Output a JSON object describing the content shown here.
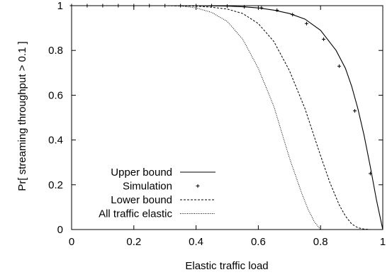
{
  "chart_data": {
    "type": "line",
    "title": "",
    "xlabel": "Elastic traffic load",
    "ylabel": "Pr[ streaming throughput > 0.1 ]",
    "xlim": [
      0,
      1
    ],
    "ylim": [
      0,
      1
    ],
    "xticks": [
      "0",
      "0.2",
      "0.4",
      "0.6",
      "0.8",
      "1"
    ],
    "yticks": [
      "0",
      "0.2",
      "0.4",
      "0.6",
      "0.8",
      "1"
    ],
    "grid": false,
    "legend_position": "bottom-left",
    "series": [
      {
        "name": "Upper bound",
        "style": "solid",
        "x": [
          0,
          0.1,
          0.2,
          0.3,
          0.4,
          0.45,
          0.5,
          0.55,
          0.6,
          0.65,
          0.7,
          0.75,
          0.8,
          0.85,
          0.88,
          0.9,
          0.92,
          0.94,
          0.96,
          0.98,
          1.0
        ],
        "y": [
          1,
          1,
          1,
          1,
          1,
          0.999,
          0.998,
          0.995,
          0.99,
          0.98,
          0.965,
          0.94,
          0.89,
          0.8,
          0.72,
          0.64,
          0.54,
          0.42,
          0.28,
          0.13,
          0
        ]
      },
      {
        "name": "Simulation",
        "style": "points",
        "x": [
          0.0,
          0.05,
          0.1,
          0.15,
          0.2,
          0.25,
          0.3,
          0.35,
          0.4,
          0.45,
          0.5,
          0.555,
          0.61,
          0.66,
          0.71,
          0.755,
          0.81,
          0.86,
          0.91,
          0.96
        ],
        "y": [
          1,
          1,
          1,
          1,
          1,
          1,
          1,
          1,
          1,
          1,
          0.998,
          0.995,
          0.99,
          0.98,
          0.96,
          0.92,
          0.85,
          0.73,
          0.53,
          0.25
        ]
      },
      {
        "name": "Lower bound",
        "style": "dashed",
        "x": [
          0,
          0.1,
          0.2,
          0.3,
          0.4,
          0.45,
          0.5,
          0.55,
          0.6,
          0.65,
          0.7,
          0.75,
          0.8,
          0.83,
          0.86,
          0.88,
          0.9,
          0.92,
          0.94,
          0.96
        ],
        "y": [
          1,
          1,
          1,
          1,
          0.998,
          0.993,
          0.985,
          0.965,
          0.92,
          0.84,
          0.71,
          0.54,
          0.33,
          0.21,
          0.11,
          0.06,
          0.025,
          0.008,
          0.002,
          0
        ]
      },
      {
        "name": "All traffic elastic",
        "style": "dotted",
        "x": [
          0,
          0.1,
          0.2,
          0.3,
          0.35,
          0.4,
          0.45,
          0.5,
          0.55,
          0.6,
          0.65,
          0.7,
          0.72,
          0.74,
          0.76,
          0.78,
          0.8
        ],
        "y": [
          1,
          1,
          1,
          1,
          0.999,
          0.99,
          0.97,
          0.93,
          0.85,
          0.72,
          0.55,
          0.32,
          0.24,
          0.16,
          0.09,
          0.035,
          0
        ]
      }
    ]
  }
}
